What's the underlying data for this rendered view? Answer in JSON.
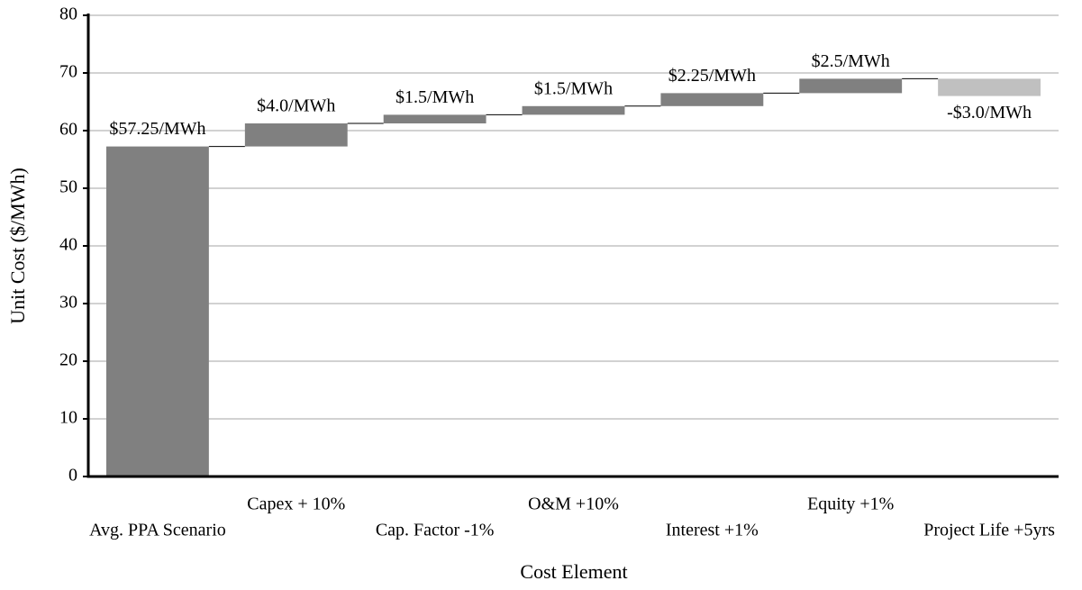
{
  "chart_data": {
    "type": "waterfall",
    "xlabel": "Cost Element",
    "ylabel": "Unit Cost ($/MWh)",
    "categories": [
      "Avg. PPA Scenario",
      "Capex + 10%",
      "Cap. Factor -1%",
      "O&M +10%",
      "Interest +1%",
      "Equity +1%",
      "Project Life +5yrs"
    ],
    "values": [
      57.25,
      4.0,
      1.5,
      1.5,
      2.25,
      2.5,
      -3.0
    ],
    "value_labels": [
      "$57.25/MWh",
      "$4.0/MWh",
      "$1.5/MWh",
      "$1.5/MWh",
      "$2.25/MWh",
      "$2.5/MWh",
      "-$3.0/MWh"
    ],
    "color": "#808080",
    "negative_color": "#c0c0c0",
    "ylim": [
      0,
      80
    ],
    "yticks": [
      0,
      10,
      20,
      30,
      40,
      50,
      60,
      70,
      80
    ],
    "grid": true
  }
}
